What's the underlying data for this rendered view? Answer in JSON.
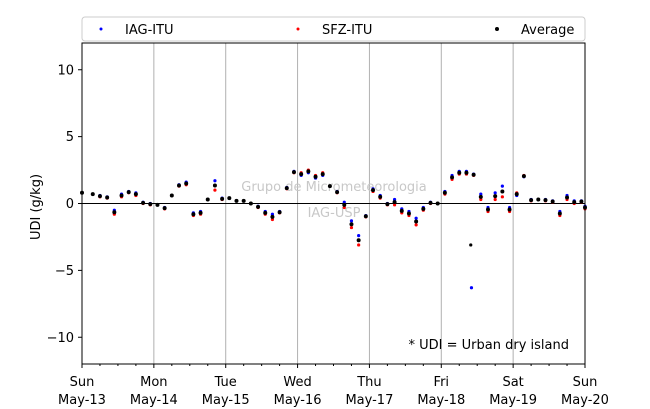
{
  "chart_data": {
    "type": "scatter",
    "title": "",
    "xlabel": "",
    "ylabel": "UDI (g/kg)",
    "ylim": [
      -12,
      12
    ],
    "xlim": [
      0,
      7
    ],
    "y_ticks": [
      -10,
      -5,
      0,
      5,
      10
    ],
    "y_tick_labels": [
      "−10",
      "−5",
      "0",
      "5",
      "10"
    ],
    "x_ticks": [
      0,
      1,
      2,
      3,
      4,
      5,
      6,
      7
    ],
    "x_tick_labels_day": [
      "Sun",
      "Mon",
      "Tue",
      "Wed",
      "Thu",
      "Fri",
      "Sat",
      "Sun"
    ],
    "x_tick_labels_date": [
      "May-13",
      "May-14",
      "May-15",
      "May-16",
      "May-17",
      "May-18",
      "May-19",
      "May-20"
    ],
    "grid": "vertical",
    "reference_line_y": 0,
    "legend_placement": "top",
    "watermark": [
      "Grupo de Micrometeorologia",
      "IAG-USP"
    ],
    "annotation": "* UDI = Urban dry island",
    "x": [
      0.0,
      0.15,
      0.25,
      0.35,
      0.45,
      0.55,
      0.65,
      0.75,
      0.85,
      0.95,
      1.05,
      1.15,
      1.25,
      1.35,
      1.45,
      1.55,
      1.65,
      1.75,
      1.85,
      1.95,
      2.05,
      2.15,
      2.25,
      2.35,
      2.45,
      2.55,
      2.65,
      2.75,
      2.85,
      2.95,
      3.05,
      3.15,
      3.25,
      3.35,
      3.45,
      3.55,
      3.65,
      3.75,
      3.85,
      3.95,
      4.05,
      4.15,
      4.25,
      4.35,
      4.45,
      4.55,
      4.65,
      4.75,
      4.85,
      4.95,
      5.05,
      5.15,
      5.25,
      5.35,
      5.45,
      5.55,
      5.65,
      5.75,
      5.85,
      5.95,
      6.05,
      6.15,
      6.25,
      6.35,
      6.45,
      6.55,
      6.65,
      6.75,
      6.85,
      6.95,
      7.0
    ],
    "series": [
      {
        "name": "IAG-ITU",
        "color": "#0000ff",
        "values": [
          0.8,
          0.7,
          0.6,
          0.5,
          -0.5,
          0.7,
          0.9,
          0.8,
          0.1,
          0.0,
          -0.1,
          -0.3,
          0.6,
          1.4,
          1.6,
          -0.7,
          -0.6,
          0.3,
          1.7,
          0.4,
          0.4,
          0.2,
          0.2,
          0.0,
          -0.2,
          -0.6,
          -0.8,
          -0.6,
          1.2,
          2.4,
          2.1,
          2.3,
          1.9,
          2.1,
          1.3,
          0.9,
          0.1,
          -1.3,
          -2.4,
          -0.9,
          1.1,
          0.6,
          0.0,
          0.3,
          -0.4,
          -0.6,
          -1.1,
          -0.3,
          0.1,
          0.0,
          0.9,
          2.1,
          2.4,
          2.4,
          2.2,
          0.7,
          -0.3,
          0.8,
          1.3,
          -0.3,
          0.6,
          2.0,
          0.3,
          0.3,
          0.3,
          0.2,
          -0.6,
          0.6,
          0.2,
          0.2,
          -0.2
        ]
      },
      {
        "name": "SFZ-ITU",
        "color": "#ff0000",
        "values": [
          0.8,
          0.7,
          0.5,
          0.4,
          -0.8,
          0.5,
          0.8,
          0.6,
          0.0,
          -0.1,
          -0.1,
          -0.4,
          0.6,
          1.3,
          1.4,
          -0.9,
          -0.8,
          0.3,
          1.0,
          0.3,
          0.4,
          0.2,
          0.2,
          0.0,
          -0.3,
          -0.8,
          -1.2,
          -0.7,
          1.1,
          2.3,
          2.3,
          2.5,
          2.1,
          2.3,
          1.3,
          0.8,
          -0.3,
          -1.8,
          -3.1,
          -1.0,
          0.9,
          0.4,
          -0.1,
          -0.1,
          -0.7,
          -0.9,
          -1.6,
          -0.5,
          0.0,
          0.0,
          0.7,
          1.8,
          2.2,
          2.2,
          2.1,
          0.3,
          -0.6,
          0.3,
          0.5,
          -0.6,
          0.8,
          2.1,
          0.2,
          0.3,
          0.2,
          0.1,
          -0.9,
          0.3,
          0.0,
          0.1,
          -0.4
        ]
      },
      {
        "name": "Average",
        "color": "#000000",
        "values": [
          0.8,
          0.7,
          0.55,
          0.45,
          -0.65,
          0.6,
          0.85,
          0.7,
          0.05,
          -0.05,
          -0.1,
          -0.35,
          0.6,
          1.35,
          1.5,
          -0.8,
          -0.7,
          0.3,
          1.35,
          0.35,
          0.4,
          0.2,
          0.2,
          0.0,
          -0.25,
          -0.7,
          -1.0,
          -0.65,
          1.15,
          2.35,
          2.2,
          2.4,
          2.0,
          2.2,
          1.3,
          0.85,
          -0.1,
          -1.55,
          -2.75,
          -0.95,
          1.0,
          0.5,
          -0.05,
          0.1,
          -0.55,
          -0.75,
          -1.35,
          -0.4,
          0.05,
          0.0,
          0.8,
          1.95,
          2.3,
          2.3,
          2.15,
          0.5,
          -0.45,
          0.55,
          0.9,
          -0.45,
          0.7,
          2.05,
          0.25,
          0.3,
          0.25,
          0.15,
          -0.75,
          0.45,
          0.1,
          0.15,
          -0.3
        ]
      }
    ],
    "outliers": [
      {
        "series": "Average",
        "x": 5.41,
        "y": -3.1
      },
      {
        "series": "IAG-ITU",
        "x": 5.42,
        "y": -6.3
      }
    ]
  }
}
